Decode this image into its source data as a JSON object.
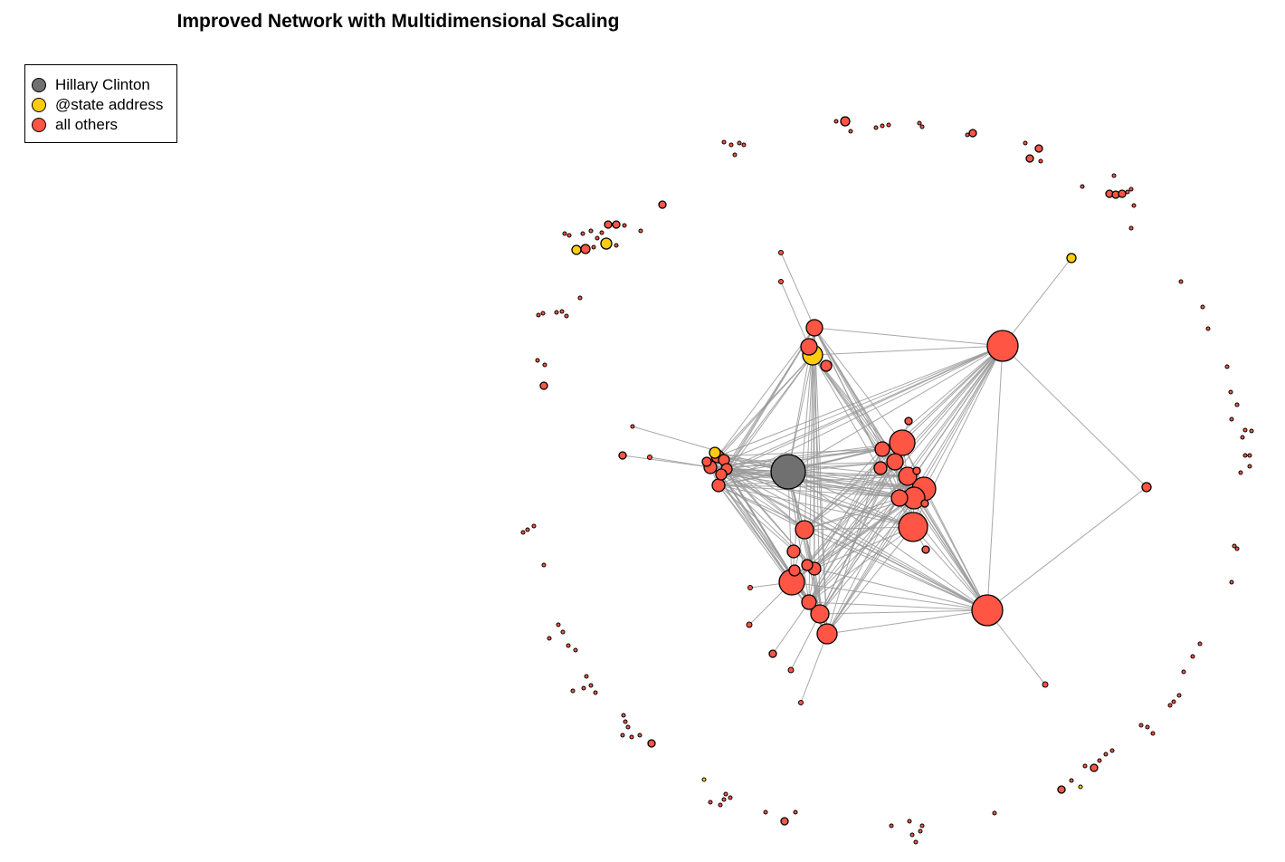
{
  "title": "Improved Network with Multidimensional Scaling",
  "legend": {
    "items": [
      {
        "label": "Hillary Clinton",
        "color": "#707070"
      },
      {
        "label": "@state address",
        "color": "#FFCC11"
      },
      {
        "label": "all others",
        "color": "#FF5544"
      }
    ]
  },
  "colors": {
    "hillary": "#707070",
    "state": "#FFCC11",
    "others": "#FF5544",
    "edge": "#999999",
    "outline": "#000000"
  }
}
